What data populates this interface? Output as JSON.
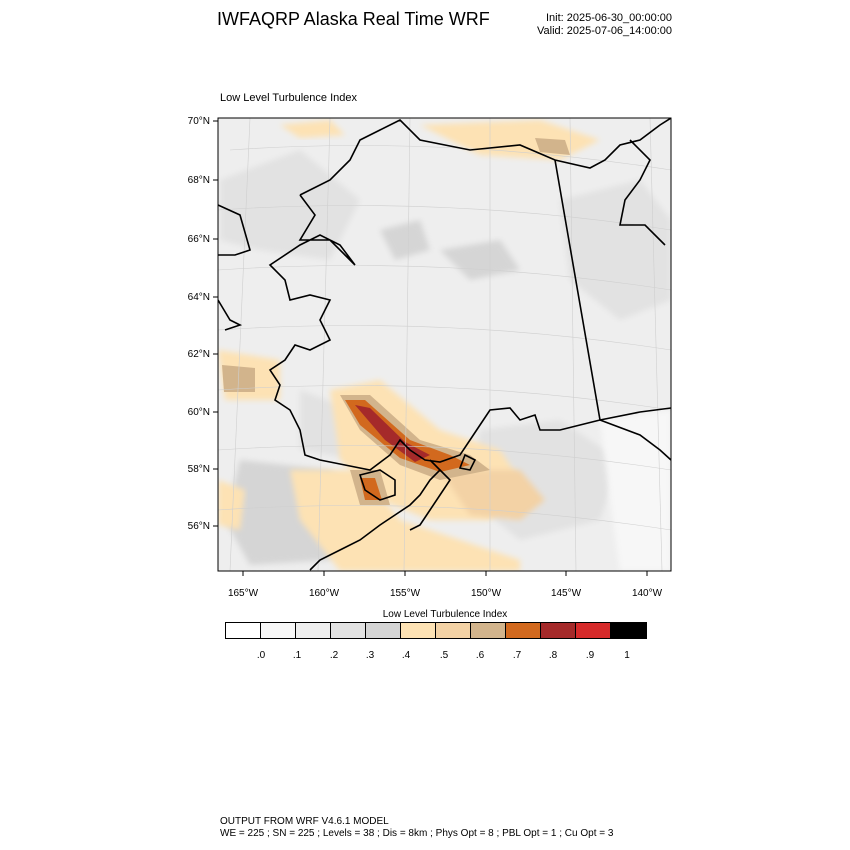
{
  "header": {
    "title": "IWFAQRP Alaska Real Time WRF",
    "init": "Init: 2025-06-30_00:00:00",
    "valid": "Valid: 2025-07-06_14:00:00"
  },
  "plot": {
    "subtitle": "Low Level Turbulence Index",
    "lat_labels": [
      "70°N",
      "68°N",
      "66°N",
      "64°N",
      "62°N",
      "60°N",
      "58°N",
      "56°N"
    ],
    "lon_labels": [
      "165°W",
      "160°W",
      "155°W",
      "150°W",
      "145°W",
      "140°W"
    ]
  },
  "colorbar": {
    "title": "Low Level Turbulence Index",
    "labels": [
      ".0",
      ".1",
      ".2",
      ".3",
      ".4",
      ".5",
      ".6",
      ".7",
      ".8",
      ".9",
      "1"
    ],
    "colors": [
      "#ffffff",
      "#f7f7f7",
      "#eeeeee",
      "#e2e2e2",
      "#d5d5d5",
      "#fde2b4",
      "#f3d2a5",
      "#d2b48c",
      "#d2691e",
      "#a52a2a",
      "#d62a2a",
      "#000000"
    ]
  },
  "footer": {
    "line1": "OUTPUT FROM WRF V4.6.1 MODEL",
    "line2": "WE = 225 ; SN = 225 ; Levels = 38 ; Dis = 8km ; Phys Opt = 8 ; PBL Opt = 1 ; Cu Opt = 3"
  }
}
